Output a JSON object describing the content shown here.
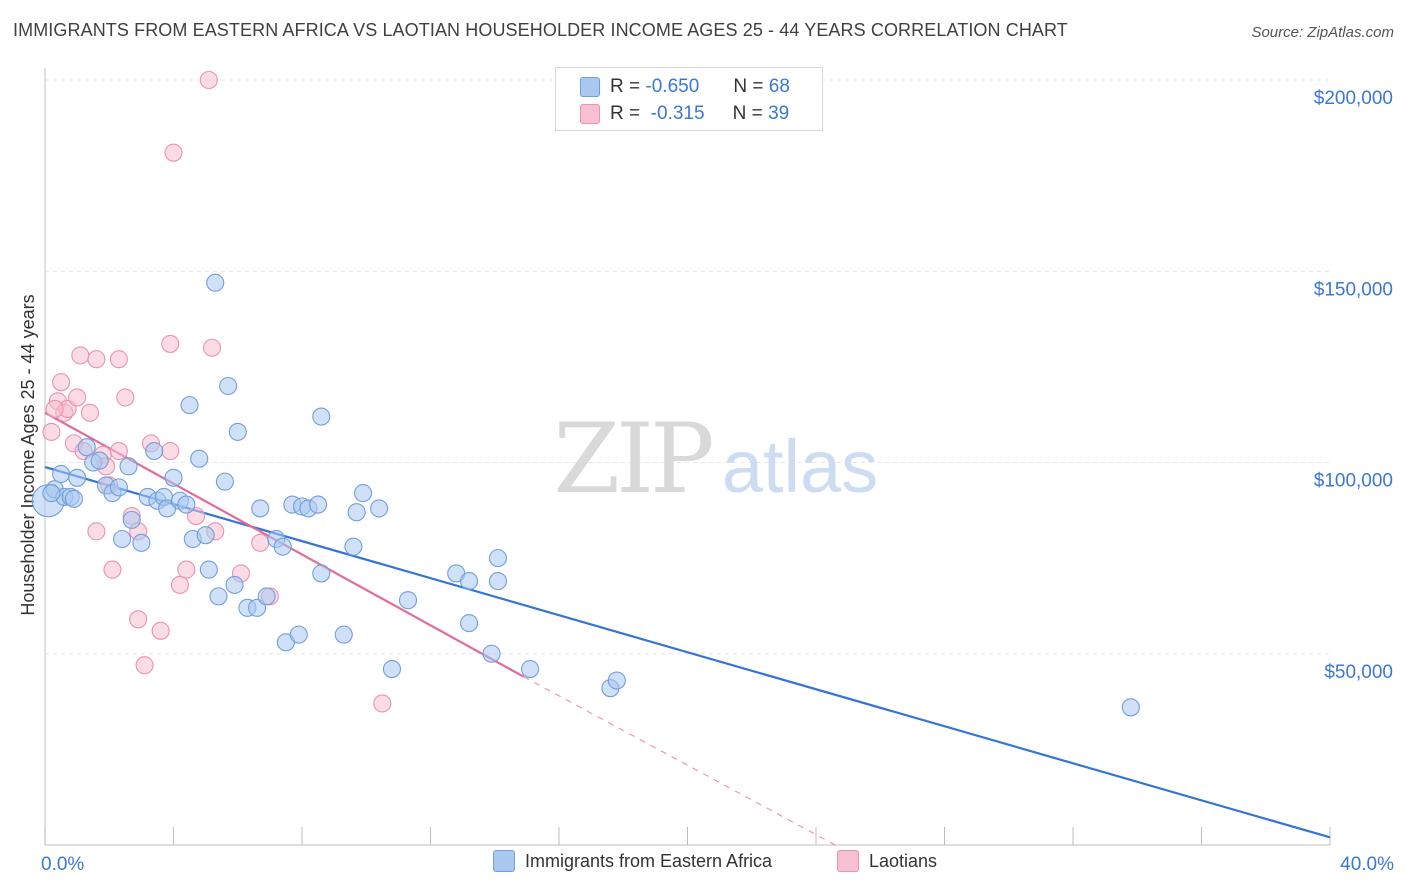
{
  "title": "IMMIGRANTS FROM EASTERN AFRICA VS LAOTIAN HOUSEHOLDER INCOME AGES 25 - 44 YEARS CORRELATION CHART",
  "source": "Source: ZipAtlas.com",
  "watermark": {
    "zip": "ZIP",
    "atlas": "atlas"
  },
  "stats": {
    "blue": {
      "r_label": "R =",
      "r_value": "-0.650",
      "n_label": "N =",
      "n_value": "68"
    },
    "pink": {
      "r_label": "R =",
      "r_value": "-0.315",
      "n_label": "N =",
      "n_value": "39"
    }
  },
  "colors": {
    "blue_fill": "#a9c8f0",
    "blue_stroke": "#6f9fdc",
    "blue_line": "#3474d4",
    "pink_fill": "#f7c0d0",
    "pink_stroke": "#ea92ae",
    "pink_line": "#e26c98",
    "tick_label": "#3a78d4",
    "grid": "#e6e6e6"
  },
  "chart_data": {
    "type": "scatter",
    "title": "IMMIGRANTS FROM EASTERN AFRICA VS LAOTIAN HOUSEHOLDER INCOME AGES 25 - 44 YEARS CORRELATION CHART",
    "xlabel": "",
    "ylabel": "Householder Income Ages 25 - 44 years",
    "xlim": [
      0,
      40
    ],
    "ylim": [
      0,
      200000
    ],
    "x_tick_labels": [
      "0.0%",
      "40.0%"
    ],
    "y_ticks": [
      50000,
      100000,
      150000,
      200000
    ],
    "y_tick_labels": [
      "$50,000",
      "$100,000",
      "$150,000",
      "$200,000"
    ],
    "grid": "horizontal dashed",
    "legend_position": "bottom-center",
    "series": [
      {
        "name": "Immigrants from Eastern Africa",
        "color": "#a9c8f0",
        "points": [
          [
            0.1,
            90000
          ],
          [
            0.3,
            93000
          ],
          [
            0.5,
            97000
          ],
          [
            0.6,
            91000
          ],
          [
            0.8,
            91000
          ],
          [
            0.9,
            90500
          ],
          [
            1.0,
            96000
          ],
          [
            1.3,
            104000
          ],
          [
            1.5,
            100000
          ],
          [
            1.7,
            100500
          ],
          [
            1.9,
            94000
          ],
          [
            2.1,
            92000
          ],
          [
            2.3,
            93500
          ],
          [
            2.4,
            80000
          ],
          [
            2.6,
            99000
          ],
          [
            2.7,
            85000
          ],
          [
            3.0,
            79000
          ],
          [
            3.2,
            91000
          ],
          [
            3.4,
            103000
          ],
          [
            3.5,
            90000
          ],
          [
            3.7,
            91000
          ],
          [
            3.8,
            88000
          ],
          [
            4.0,
            96000
          ],
          [
            4.2,
            90000
          ],
          [
            4.4,
            89000
          ],
          [
            4.5,
            115000
          ],
          [
            4.6,
            80000
          ],
          [
            4.8,
            101000
          ],
          [
            5.0,
            81000
          ],
          [
            5.1,
            72000
          ],
          [
            5.3,
            147000
          ],
          [
            5.4,
            65000
          ],
          [
            5.6,
            95000
          ],
          [
            5.7,
            120000
          ],
          [
            5.9,
            68000
          ],
          [
            6.0,
            108000
          ],
          [
            6.3,
            62000
          ],
          [
            6.6,
            62000
          ],
          [
            6.7,
            88000
          ],
          [
            6.9,
            65000
          ],
          [
            7.2,
            80000
          ],
          [
            7.4,
            78000
          ],
          [
            7.5,
            53000
          ],
          [
            7.7,
            89000
          ],
          [
            7.9,
            55000
          ],
          [
            8.0,
            88500
          ],
          [
            8.2,
            88000
          ],
          [
            8.5,
            89000
          ],
          [
            8.6,
            71000
          ],
          [
            8.6,
            112000
          ],
          [
            9.3,
            55000
          ],
          [
            9.6,
            78000
          ],
          [
            9.7,
            87000
          ],
          [
            9.9,
            92000
          ],
          [
            10.4,
            88000
          ],
          [
            10.8,
            46000
          ],
          [
            11.3,
            64000
          ],
          [
            12.8,
            71000
          ],
          [
            13.2,
            69000
          ],
          [
            13.2,
            58000
          ],
          [
            13.9,
            50000
          ],
          [
            14.1,
            69000
          ],
          [
            14.1,
            75000
          ],
          [
            15.1,
            46000
          ],
          [
            17.6,
            41000
          ],
          [
            17.8,
            43000
          ],
          [
            33.8,
            36000
          ],
          [
            0.2,
            92000
          ]
        ],
        "trend": {
          "x": [
            0,
            40
          ],
          "y": [
            98800,
            2000
          ]
        }
      },
      {
        "name": "Laotians",
        "color": "#f7c0d0",
        "points": [
          [
            0.2,
            108000
          ],
          [
            0.4,
            116000
          ],
          [
            0.5,
            121000
          ],
          [
            0.6,
            113000
          ],
          [
            0.7,
            114000
          ],
          [
            0.9,
            105000
          ],
          [
            1.0,
            117000
          ],
          [
            1.1,
            128000
          ],
          [
            1.2,
            103000
          ],
          [
            1.4,
            113000
          ],
          [
            1.6,
            82000
          ],
          [
            1.6,
            127000
          ],
          [
            1.8,
            102000
          ],
          [
            2.0,
            94000
          ],
          [
            2.1,
            72000
          ],
          [
            2.3,
            103000
          ],
          [
            2.3,
            127000
          ],
          [
            2.5,
            117000
          ],
          [
            2.7,
            86000
          ],
          [
            2.9,
            82000
          ],
          [
            2.9,
            59000
          ],
          [
            3.1,
            47000
          ],
          [
            3.3,
            105000
          ],
          [
            3.6,
            56000
          ],
          [
            3.9,
            103000
          ],
          [
            3.9,
            131000
          ],
          [
            4.0,
            181000
          ],
          [
            4.2,
            68000
          ],
          [
            4.4,
            72000
          ],
          [
            4.7,
            86000
          ],
          [
            5.1,
            200000
          ],
          [
            5.2,
            130000
          ],
          [
            5.3,
            82000
          ],
          [
            6.1,
            71000
          ],
          [
            6.7,
            79000
          ],
          [
            7.0,
            65000
          ],
          [
            10.5,
            37000
          ],
          [
            0.3,
            114000
          ],
          [
            1.9,
            99000
          ]
        ],
        "trend": {
          "x": [
            0,
            14.9
          ],
          "y": [
            113000,
            44000
          ]
        },
        "trend_extension": {
          "x": [
            14.9,
            24.6
          ],
          "y": [
            44000,
            0
          ]
        }
      }
    ]
  }
}
